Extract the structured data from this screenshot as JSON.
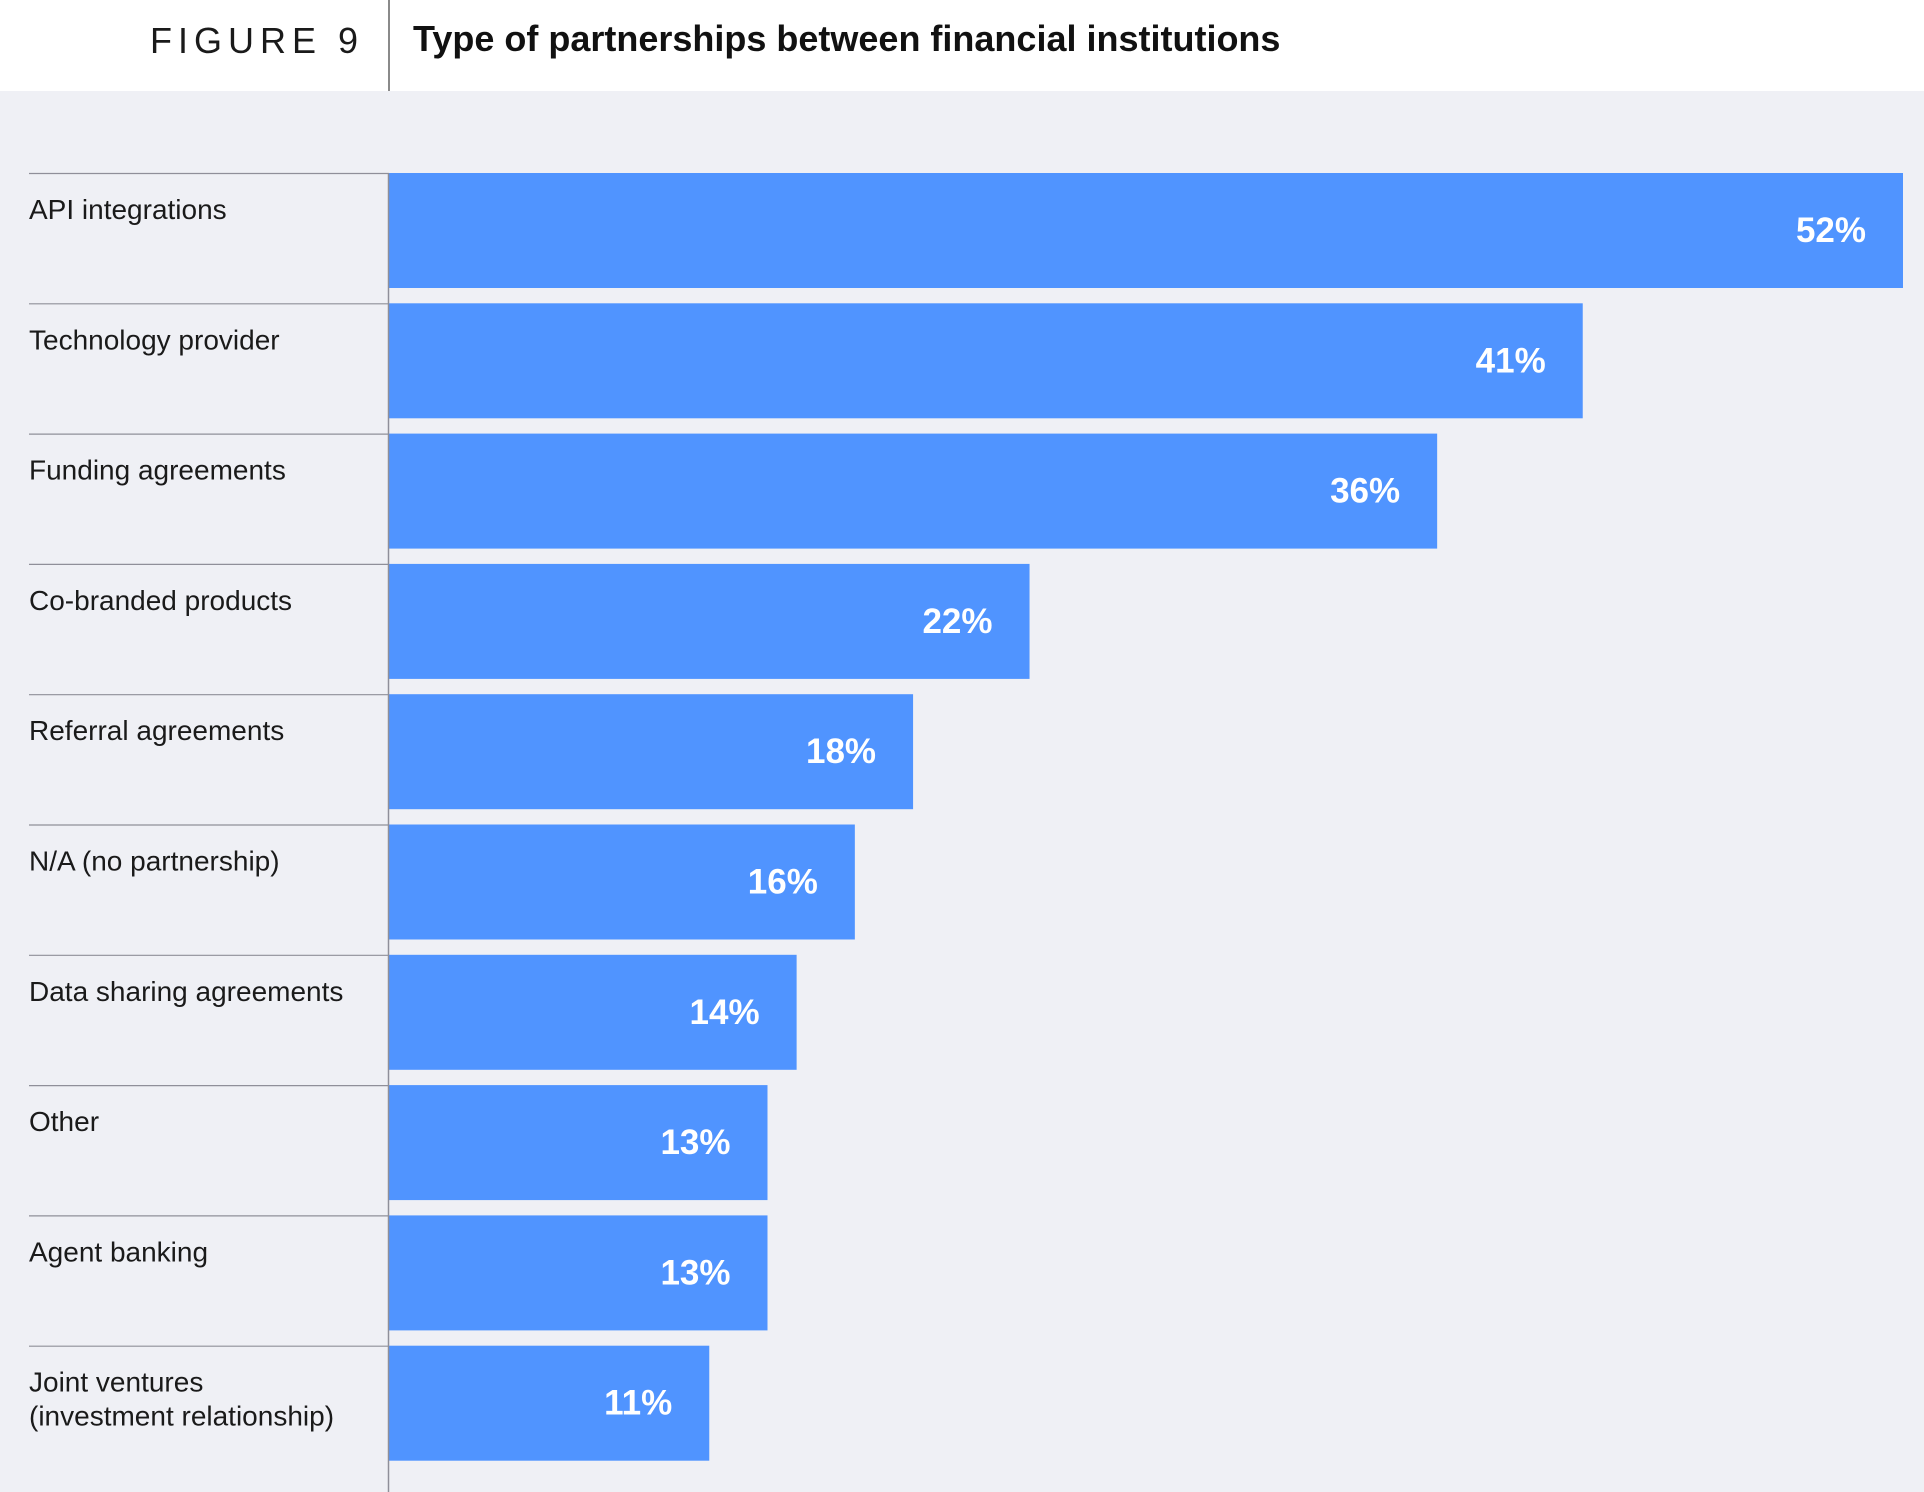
{
  "figure_label": "FIGURE 9",
  "chart_data": {
    "type": "bar",
    "orientation": "horizontal",
    "title": "Type of partnerships between financial institutions",
    "categories": [
      [
        "API integrations"
      ],
      [
        "Technology provider"
      ],
      [
        "Funding agreements"
      ],
      [
        "Co-branded products"
      ],
      [
        "Referral agreements"
      ],
      [
        "N/A (no partnership)"
      ],
      [
        "Data sharing agreements"
      ],
      [
        "Other"
      ],
      [
        "Agent banking"
      ],
      [
        "Joint ventures",
        "(investment relationship)"
      ]
    ],
    "values": [
      52,
      41,
      36,
      22,
      18,
      16,
      14,
      13,
      13,
      11
    ],
    "value_labels": [
      "52%",
      "41%",
      "36%",
      "22%",
      "18%",
      "16%",
      "14%",
      "13%",
      "13%",
      "11%"
    ],
    "unit": "%",
    "xlim": [
      0,
      52
    ],
    "grid": false,
    "bar_color": "#5094ff",
    "background_color": "#eff0f5"
  }
}
